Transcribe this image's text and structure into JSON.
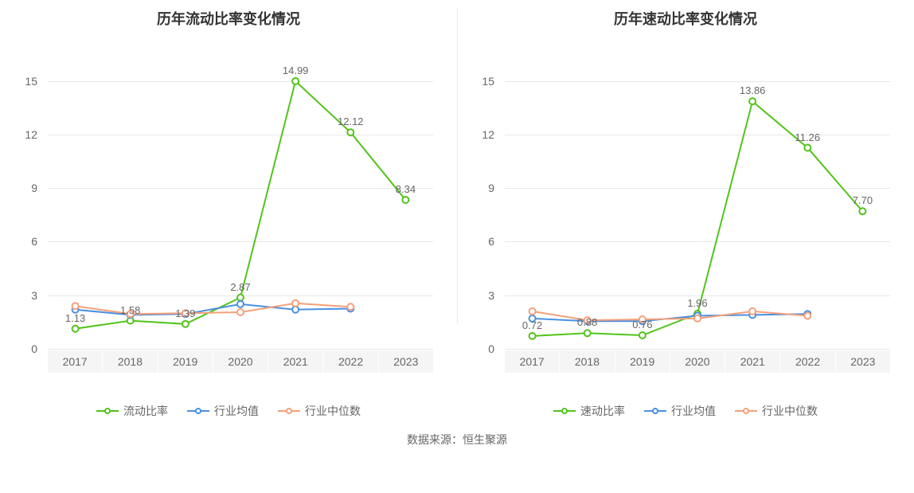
{
  "source_text": "数据来源：恒生聚源",
  "colors": {
    "title": "#333333",
    "axis_text": "#666666",
    "grid": "#e8e8e8",
    "xband_bg": "#f5f5f5",
    "series_primary": "#52c41a",
    "series_avg": "#4a90e2",
    "series_median": "#f5a07a",
    "background": "#ffffff"
  },
  "left_chart": {
    "title": "历年流动比率变化情况",
    "type": "line",
    "categories": [
      "2017",
      "2018",
      "2019",
      "2020",
      "2021",
      "2022",
      "2023"
    ],
    "ylim": [
      0,
      16.5
    ],
    "yticks": [
      0,
      3,
      6,
      9,
      12,
      15
    ],
    "series": [
      {
        "key": "primary",
        "name": "流动比率",
        "color": "#52c41a",
        "values": [
          1.13,
          1.58,
          1.39,
          2.87,
          14.99,
          12.12,
          8.34
        ],
        "show_labels": true,
        "label_fmt": [
          "1.13",
          "1.58",
          "1.39",
          "2.87",
          "14.99",
          "12.12",
          "8.34"
        ]
      },
      {
        "key": "avg",
        "name": "行业均值",
        "color": "#4a90e2",
        "values": [
          2.2,
          1.9,
          1.95,
          2.5,
          2.2,
          2.25,
          null
        ],
        "show_labels": false
      },
      {
        "key": "median",
        "name": "行业中位数",
        "color": "#f5a07a",
        "values": [
          2.4,
          1.95,
          2.0,
          2.05,
          2.55,
          2.35,
          null
        ],
        "show_labels": false
      }
    ],
    "title_fontsize": 18,
    "label_fontsize": 14,
    "value_label_fontsize": 13,
    "marker_radius": 4,
    "line_width": 2
  },
  "right_chart": {
    "title": "历年速动比率变化情况",
    "type": "line",
    "categories": [
      "2017",
      "2018",
      "2019",
      "2020",
      "2021",
      "2022",
      "2023"
    ],
    "ylim": [
      0,
      16.5
    ],
    "yticks": [
      0,
      3,
      6,
      9,
      12,
      15
    ],
    "series": [
      {
        "key": "primary",
        "name": "速动比率",
        "color": "#52c41a",
        "values": [
          0.72,
          0.88,
          0.76,
          1.96,
          13.86,
          11.26,
          7.7
        ],
        "show_labels": true,
        "label_fmt": [
          "0.72",
          "0.88",
          "0.76",
          "1.96",
          "13.86",
          "11.26",
          "7.70"
        ]
      },
      {
        "key": "avg",
        "name": "行业均值",
        "color": "#4a90e2",
        "values": [
          1.7,
          1.55,
          1.55,
          1.85,
          1.9,
          1.95,
          null
        ],
        "show_labels": false
      },
      {
        "key": "median",
        "name": "行业中位数",
        "color": "#f5a07a",
        "values": [
          2.1,
          1.6,
          1.65,
          1.7,
          2.1,
          1.85,
          null
        ],
        "show_labels": false
      }
    ],
    "title_fontsize": 18,
    "label_fontsize": 14,
    "value_label_fontsize": 13,
    "marker_radius": 4,
    "line_width": 2
  }
}
